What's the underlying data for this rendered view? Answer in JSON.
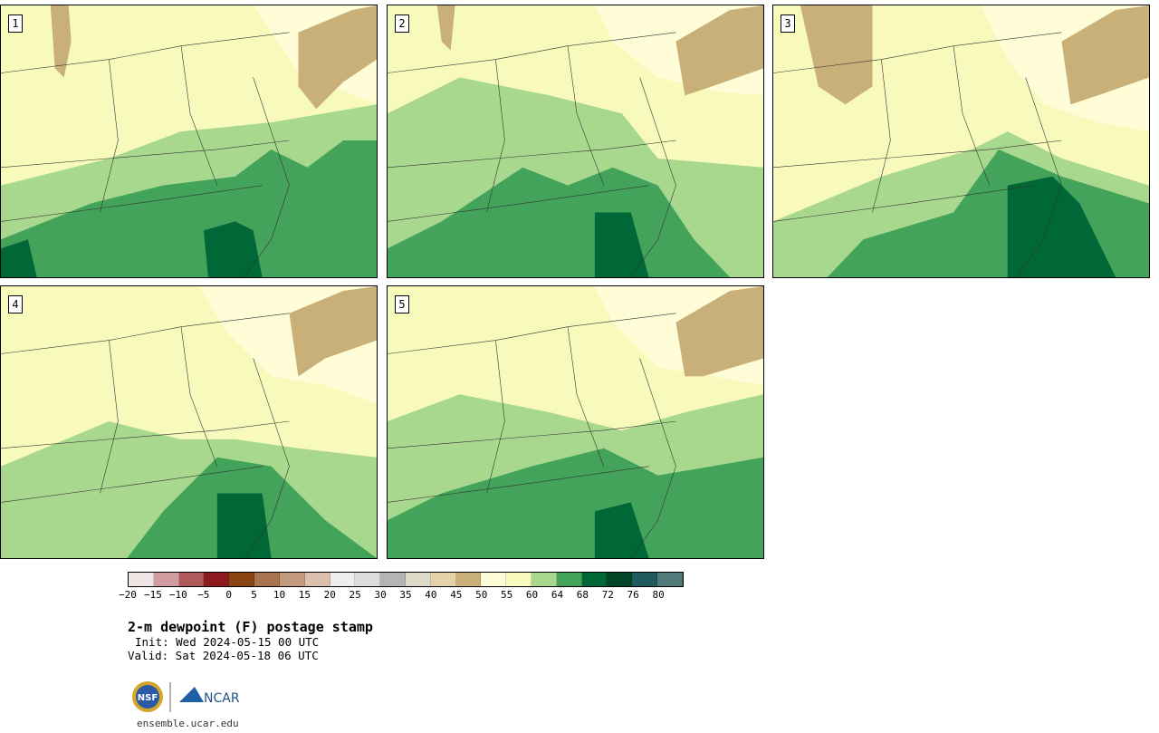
{
  "panels": [
    {
      "number": "1"
    },
    {
      "number": "2"
    },
    {
      "number": "3"
    },
    {
      "number": "4"
    },
    {
      "number": "5"
    }
  ],
  "colorbar": {
    "tick_labels": [
      "−20",
      "−15",
      "−10",
      "−5",
      "0",
      "5",
      "10",
      "15",
      "20",
      "25",
      "30",
      "35",
      "40",
      "45",
      "50",
      "55",
      "60",
      "64",
      "68",
      "72",
      "76",
      "80"
    ],
    "colors": [
      "#f1e4e4",
      "#d09c9f",
      "#b05a5c",
      "#8c1a1e",
      "#8b4513",
      "#a87450",
      "#c49a7e",
      "#dcc0ae",
      "#eeeeee",
      "#dcdcdc",
      "#b4b4b4",
      "#dcdcc8",
      "#e4d2a8",
      "#c9b078",
      "#fffcd8",
      "#f7fabb",
      "#a8d88e",
      "#43a35a",
      "#006837",
      "#004526",
      "#1f5a5c",
      "#4f7b7b"
    ]
  },
  "title": "2-m dewpoint (F) postage stamp",
  "init": "Init: Wed 2024-05-15 00 UTC",
  "valid": "Valid: Sat 2024-05-18 06 UTC",
  "logos": {
    "left": "NSF",
    "right": "NCAR"
  },
  "website": "ensemble.ucar.edu"
}
